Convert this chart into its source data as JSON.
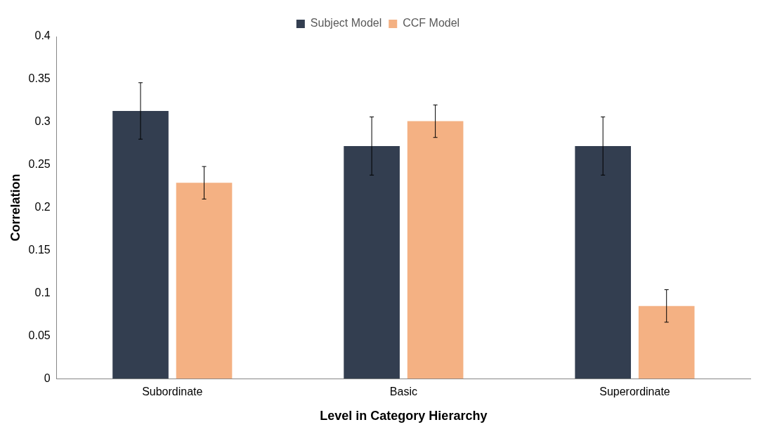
{
  "chart_data": {
    "type": "bar",
    "xlabel": "Level in Category Hierarchy",
    "ylabel": "Correlation",
    "categories": [
      "Subordinate",
      "Basic",
      "Superordinate"
    ],
    "series": [
      {
        "name": "Subject Model",
        "color": "#333e50",
        "values": [
          0.313,
          0.272,
          0.272
        ],
        "errors": [
          0.033,
          0.034,
          0.034
        ]
      },
      {
        "name": "CCF Model",
        "color": "#f4b183",
        "values": [
          0.229,
          0.301,
          0.085
        ],
        "errors": [
          0.019,
          0.019,
          0.019
        ]
      }
    ],
    "ylim": [
      0,
      0.4
    ],
    "yticks": [
      0,
      0.05,
      0.1,
      0.15,
      0.2,
      0.25,
      0.3,
      0.35,
      0.4
    ],
    "grid": false,
    "legend": "top"
  }
}
